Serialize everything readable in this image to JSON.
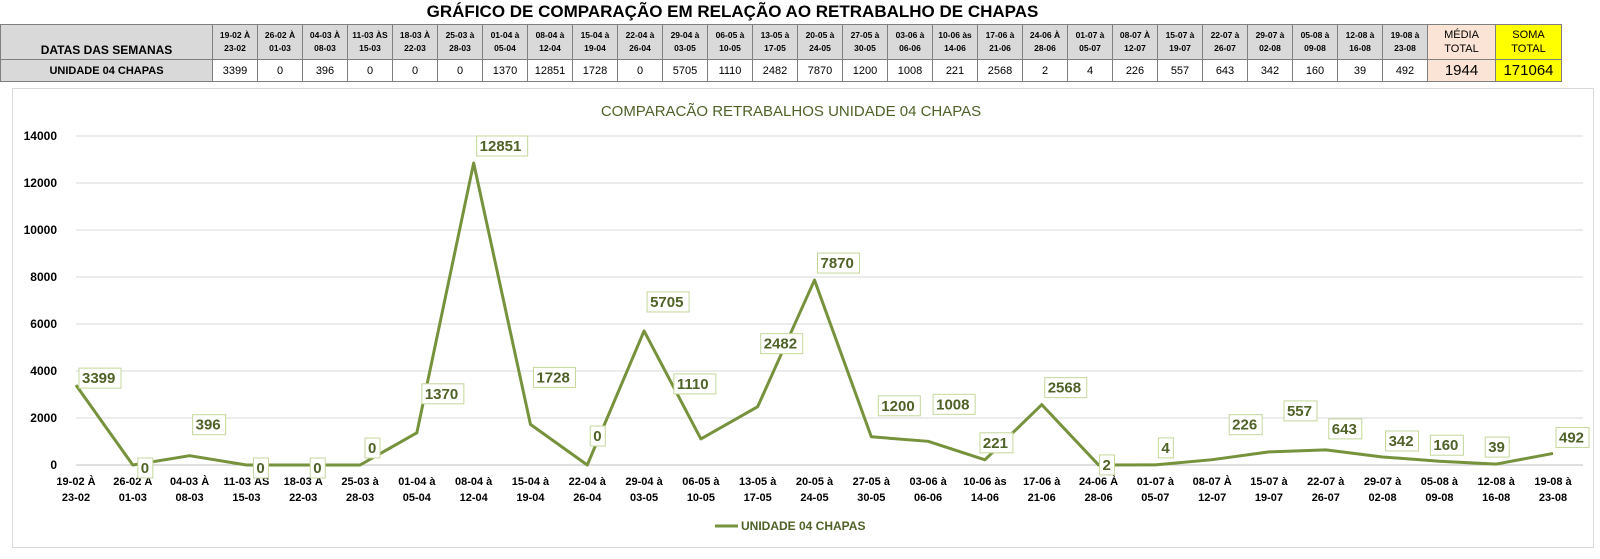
{
  "page_title": "GRÁFICO DE COMPARAÇÃO EM RELAÇÃO AO RETRABALHO DE CHAPAS",
  "table": {
    "header_label": "DATAS DAS SEMANAS",
    "row_label": "UNIDADE 04 CHAPAS",
    "weeks": [
      {
        "a": "19-02 À",
        "b": "23-02"
      },
      {
        "a": "26-02 À",
        "b": "01-03"
      },
      {
        "a": "04-03 À",
        "b": "08-03"
      },
      {
        "a": "11-03 ÀS",
        "b": "15-03"
      },
      {
        "a": "18-03 À",
        "b": "22-03"
      },
      {
        "a": "25-03 à",
        "b": "28-03"
      },
      {
        "a": "01-04 à",
        "b": "05-04"
      },
      {
        "a": "08-04 à",
        "b": "12-04"
      },
      {
        "a": "15-04 à",
        "b": "19-04"
      },
      {
        "a": "22-04 à",
        "b": "26-04"
      },
      {
        "a": "29-04 à",
        "b": "03-05"
      },
      {
        "a": "06-05 à",
        "b": "10-05"
      },
      {
        "a": "13-05 à",
        "b": "17-05"
      },
      {
        "a": "20-05 à",
        "b": "24-05"
      },
      {
        "a": "27-05 à",
        "b": "30-05"
      },
      {
        "a": "03-06 à",
        "b": "06-06"
      },
      {
        "a": "10-06 às",
        "b": "14-06"
      },
      {
        "a": "17-06 à",
        "b": "21-06"
      },
      {
        "a": "24-06 À",
        "b": "28-06"
      },
      {
        "a": "01-07 à",
        "b": "05-07"
      },
      {
        "a": "08-07 À",
        "b": "12-07"
      },
      {
        "a": "15-07 à",
        "b": "19-07"
      },
      {
        "a": "22-07 à",
        "b": "26-07"
      },
      {
        "a": "29-07 à",
        "b": "02-08"
      },
      {
        "a": "05-08 à",
        "b": "09-08"
      },
      {
        "a": "12-08 à",
        "b": "16-08"
      },
      {
        "a": "19-08 à",
        "b": "23-08"
      }
    ],
    "values": [
      "3399",
      "0",
      "396",
      "0",
      "0",
      "0",
      "1370",
      "12851",
      "1728",
      "0",
      "5705",
      "1110",
      "2482",
      "7870",
      "1200",
      "1008",
      "221",
      "2568",
      "2",
      "4",
      "226",
      "557",
      "643",
      "342",
      "160",
      "39",
      "492"
    ],
    "media": {
      "label_a": "MÉDIA",
      "label_b": "TOTAL",
      "value": "1944"
    },
    "soma": {
      "label_a": "SOMA",
      "label_b": "TOTAL",
      "value": "171064"
    }
  },
  "chart_data": {
    "type": "line",
    "title": "COMPARACÃO RETRABALHOS UNIDADE 04 CHAPAS",
    "categories": [
      [
        "19-02 À",
        "23-02"
      ],
      [
        "26-02 À",
        "01-03"
      ],
      [
        "04-03 À",
        "08-03"
      ],
      [
        "11-03 ÀS",
        "15-03"
      ],
      [
        "18-03 À",
        "22-03"
      ],
      [
        "25-03 à",
        "28-03"
      ],
      [
        "01-04 à",
        "05-04"
      ],
      [
        "08-04 à",
        "12-04"
      ],
      [
        "15-04 à",
        "19-04"
      ],
      [
        "22-04 à",
        "26-04"
      ],
      [
        "29-04 à",
        "03-05"
      ],
      [
        "06-05 à",
        "10-05"
      ],
      [
        "13-05 à",
        "17-05"
      ],
      [
        "20-05 à",
        "24-05"
      ],
      [
        "27-05 à",
        "30-05"
      ],
      [
        "03-06 à",
        "06-06"
      ],
      [
        "10-06 às",
        "14-06"
      ],
      [
        "17-06 à",
        "21-06"
      ],
      [
        "24-06 À",
        "28-06"
      ],
      [
        "01-07 à",
        "05-07"
      ],
      [
        "08-07 À",
        "12-07"
      ],
      [
        "15-07 à",
        "19-07"
      ],
      [
        "22-07 à",
        "26-07"
      ],
      [
        "29-07 à",
        "02-08"
      ],
      [
        "05-08 à",
        "09-08"
      ],
      [
        "12-08 à",
        "16-08"
      ],
      [
        "19-08 à",
        "23-08"
      ]
    ],
    "series": [
      {
        "name": "UNIDADE 04 CHAPAS",
        "values": [
          3399,
          0,
          396,
          0,
          0,
          0,
          1370,
          12851,
          1728,
          0,
          5705,
          1110,
          2482,
          7870,
          1200,
          1008,
          221,
          2568,
          2,
          4,
          226,
          557,
          643,
          342,
          160,
          39,
          492
        ]
      }
    ],
    "ylim": [
      0,
      14000
    ],
    "yticks": [
      0,
      2000,
      4000,
      6000,
      8000,
      10000,
      12000,
      14000
    ],
    "grid": true,
    "legend_position": "bottom",
    "colors": {
      "line": "#76923c",
      "label_text": "#4f6228",
      "title": "#4f6228",
      "label_box_border": "#c4d79b",
      "grid": "#d9d9d9"
    }
  }
}
